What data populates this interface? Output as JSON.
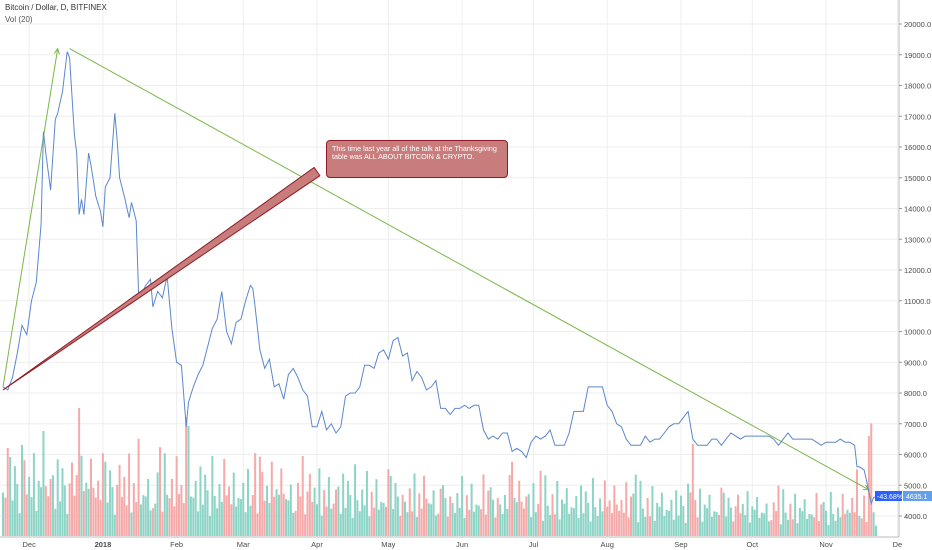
{
  "header": {
    "symbol": "Bitcoin / Dollar, D, BITFINEX",
    "volume_indicator": "Vol (20)"
  },
  "annotation": {
    "text": "This time last year all of the talk at the Thanksgiving table was ALL ABOUT BITCOIN & CRYPTO."
  },
  "badges": {
    "change": "-43.68%",
    "price": "4635.1"
  },
  "colors": {
    "price_line": "#5b87cf",
    "volume_up": "#7fcfc0",
    "volume_down": "#f4a0a0",
    "trend_line": "#7ab648",
    "arrow": "#8e1c24",
    "callout_bg": "#c97c7c",
    "grid": "#eeeeee",
    "badge_change": "#2962ff",
    "badge_price": "#62a0ea"
  },
  "chart_data": {
    "type": "line",
    "y_axis": {
      "position": "right",
      "ticks": [
        4000,
        5000,
        6000,
        7000,
        8000,
        9000,
        10000,
        11000,
        12000,
        13000,
        14000,
        15000,
        16000,
        17000,
        18000,
        19000,
        20000
      ],
      "tick_labels": [
        "4000.0",
        "5000.0",
        "6000.0",
        "7000.0",
        "8000.0",
        "9000.0",
        "10000.0",
        "11000.0",
        "12000.0",
        "13000.0",
        "14000.0",
        "15000.0",
        "16000.0",
        "17000.0",
        "18000.0",
        "19000.0",
        "20000.0"
      ],
      "range": [
        3650,
        20350
      ]
    },
    "x_axis": {
      "labels": [
        "Dec",
        "2018",
        "Feb",
        "Mar",
        "Apr",
        "May",
        "Jun",
        "Jul",
        "Aug",
        "Sep",
        "Oct",
        "Nov",
        "De"
      ],
      "bold_labels": [
        "2018"
      ]
    },
    "series": [
      {
        "kind": "price",
        "points": [
          [
            "2017-11-20",
            8200
          ],
          [
            "2017-11-22",
            8100
          ],
          [
            "2017-11-24",
            8500
          ],
          [
            "2017-11-26",
            9300
          ],
          [
            "2017-11-28",
            10200
          ],
          [
            "2017-11-30",
            9900
          ],
          [
            "2017-12-02",
            11000
          ],
          [
            "2017-12-04",
            11600
          ],
          [
            "2017-12-06",
            13500
          ],
          [
            "2017-12-07",
            16500
          ],
          [
            "2017-12-08",
            15800
          ],
          [
            "2017-12-10",
            14600
          ],
          [
            "2017-12-12",
            16900
          ],
          [
            "2017-12-13",
            17100
          ],
          [
            "2017-12-15",
            17800
          ],
          [
            "2017-12-17",
            19100
          ],
          [
            "2017-12-18",
            18900
          ],
          [
            "2017-12-20",
            16400
          ],
          [
            "2017-12-21",
            15800
          ],
          [
            "2017-12-22",
            13800
          ],
          [
            "2017-12-23",
            14300
          ],
          [
            "2017-12-24",
            13800
          ],
          [
            "2017-12-26",
            15800
          ],
          [
            "2017-12-27",
            15400
          ],
          [
            "2017-12-29",
            14400
          ],
          [
            "2017-12-31",
            13900
          ],
          [
            "2018-01-01",
            13400
          ],
          [
            "2018-01-02",
            14700
          ],
          [
            "2018-01-04",
            15000
          ],
          [
            "2018-01-06",
            17100
          ],
          [
            "2018-01-07",
            16200
          ],
          [
            "2018-01-08",
            15000
          ],
          [
            "2018-01-10",
            14400
          ],
          [
            "2018-01-12",
            13700
          ],
          [
            "2018-01-13",
            14200
          ],
          [
            "2018-01-15",
            13600
          ],
          [
            "2018-01-16",
            11200
          ],
          [
            "2018-01-17",
            11200
          ],
          [
            "2018-01-19",
            11500
          ],
          [
            "2018-01-21",
            11700
          ],
          [
            "2018-01-22",
            10800
          ],
          [
            "2018-01-24",
            11300
          ],
          [
            "2018-01-26",
            11100
          ],
          [
            "2018-01-28",
            11800
          ],
          [
            "2018-01-30",
            10100
          ],
          [
            "2018-02-01",
            9000
          ],
          [
            "2018-02-03",
            8900
          ],
          [
            "2018-02-05",
            6900
          ],
          [
            "2018-02-06",
            7700
          ],
          [
            "2018-02-08",
            8200
          ],
          [
            "2018-02-10",
            8600
          ],
          [
            "2018-02-12",
            8900
          ],
          [
            "2018-02-14",
            9500
          ],
          [
            "2018-02-16",
            10100
          ],
          [
            "2018-02-18",
            10400
          ],
          [
            "2018-02-20",
            11300
          ],
          [
            "2018-02-22",
            10000
          ],
          [
            "2018-02-24",
            9600
          ],
          [
            "2018-02-26",
            10300
          ],
          [
            "2018-02-28",
            10400
          ],
          [
            "2018-03-02",
            11000
          ],
          [
            "2018-03-04",
            11500
          ],
          [
            "2018-03-05",
            11400
          ],
          [
            "2018-03-06",
            10800
          ],
          [
            "2018-03-08",
            9400
          ],
          [
            "2018-03-10",
            8800
          ],
          [
            "2018-03-12",
            9100
          ],
          [
            "2018-03-14",
            8200
          ],
          [
            "2018-03-16",
            8300
          ],
          [
            "2018-03-18",
            7800
          ],
          [
            "2018-03-20",
            8600
          ],
          [
            "2018-03-22",
            8800
          ],
          [
            "2018-03-24",
            8500
          ],
          [
            "2018-03-26",
            8100
          ],
          [
            "2018-03-28",
            7900
          ],
          [
            "2018-03-30",
            6900
          ],
          [
            "2018-04-01",
            6900
          ],
          [
            "2018-04-03",
            7400
          ],
          [
            "2018-04-05",
            6800
          ],
          [
            "2018-04-07",
            7000
          ],
          [
            "2018-04-09",
            6700
          ],
          [
            "2018-04-11",
            6900
          ],
          [
            "2018-04-13",
            7900
          ],
          [
            "2018-04-15",
            8000
          ],
          [
            "2018-04-17",
            8000
          ],
          [
            "2018-04-19",
            8200
          ],
          [
            "2018-04-21",
            8900
          ],
          [
            "2018-04-23",
            8900
          ],
          [
            "2018-04-25",
            8800
          ],
          [
            "2018-04-27",
            9300
          ],
          [
            "2018-04-29",
            9400
          ],
          [
            "2018-05-01",
            9100
          ],
          [
            "2018-05-03",
            9700
          ],
          [
            "2018-05-05",
            9800
          ],
          [
            "2018-05-07",
            9200
          ],
          [
            "2018-05-09",
            9300
          ],
          [
            "2018-05-11",
            8400
          ],
          [
            "2018-05-13",
            8700
          ],
          [
            "2018-05-15",
            8500
          ],
          [
            "2018-05-17",
            8100
          ],
          [
            "2018-05-19",
            8200
          ],
          [
            "2018-05-21",
            8400
          ],
          [
            "2018-05-23",
            7500
          ],
          [
            "2018-05-25",
            7500
          ],
          [
            "2018-05-27",
            7300
          ],
          [
            "2018-05-29",
            7500
          ],
          [
            "2018-05-31",
            7500
          ],
          [
            "2018-06-02",
            7600
          ],
          [
            "2018-06-04",
            7500
          ],
          [
            "2018-06-06",
            7600
          ],
          [
            "2018-06-08",
            7600
          ],
          [
            "2018-06-10",
            6800
          ],
          [
            "2018-06-12",
            6500
          ],
          [
            "2018-06-14",
            6600
          ],
          [
            "2018-06-16",
            6500
          ],
          [
            "2018-06-18",
            6700
          ],
          [
            "2018-06-20",
            6700
          ],
          [
            "2018-06-22",
            6100
          ],
          [
            "2018-06-24",
            6200
          ],
          [
            "2018-06-26",
            6100
          ],
          [
            "2018-06-28",
            5900
          ],
          [
            "2018-06-30",
            6400
          ],
          [
            "2018-07-02",
            6600
          ],
          [
            "2018-07-04",
            6500
          ],
          [
            "2018-07-06",
            6600
          ],
          [
            "2018-07-08",
            6800
          ],
          [
            "2018-07-10",
            6300
          ],
          [
            "2018-07-12",
            6300
          ],
          [
            "2018-07-14",
            6300
          ],
          [
            "2018-07-16",
            6700
          ],
          [
            "2018-07-18",
            7400
          ],
          [
            "2018-07-20",
            7400
          ],
          [
            "2018-07-22",
            7400
          ],
          [
            "2018-07-24",
            8200
          ],
          [
            "2018-07-26",
            8200
          ],
          [
            "2018-07-28",
            8200
          ],
          [
            "2018-07-30",
            8200
          ],
          [
            "2018-08-01",
            7600
          ],
          [
            "2018-08-03",
            7400
          ],
          [
            "2018-08-05",
            7000
          ],
          [
            "2018-08-07",
            6900
          ],
          [
            "2018-08-09",
            6500
          ],
          [
            "2018-08-11",
            6300
          ],
          [
            "2018-08-13",
            6300
          ],
          [
            "2018-08-15",
            6300
          ],
          [
            "2018-08-17",
            6600
          ],
          [
            "2018-08-19",
            6400
          ],
          [
            "2018-08-21",
            6500
          ],
          [
            "2018-08-23",
            6500
          ],
          [
            "2018-08-25",
            6700
          ],
          [
            "2018-08-27",
            6900
          ],
          [
            "2018-08-29",
            7000
          ],
          [
            "2018-08-31",
            7000
          ],
          [
            "2018-09-02",
            7200
          ],
          [
            "2018-09-04",
            7400
          ],
          [
            "2018-09-06",
            6500
          ],
          [
            "2018-09-08",
            6300
          ],
          [
            "2018-09-10",
            6300
          ],
          [
            "2018-09-12",
            6300
          ],
          [
            "2018-09-14",
            6500
          ],
          [
            "2018-09-16",
            6500
          ],
          [
            "2018-09-18",
            6300
          ],
          [
            "2018-09-20",
            6500
          ],
          [
            "2018-09-22",
            6700
          ],
          [
            "2018-09-24",
            6600
          ],
          [
            "2018-09-26",
            6500
          ],
          [
            "2018-09-28",
            6600
          ],
          [
            "2018-09-30",
            6600
          ],
          [
            "2018-10-02",
            6600
          ],
          [
            "2018-10-04",
            6600
          ],
          [
            "2018-10-06",
            6600
          ],
          [
            "2018-10-08",
            6600
          ],
          [
            "2018-10-10",
            6500
          ],
          [
            "2018-10-12",
            6300
          ],
          [
            "2018-10-14",
            6500
          ],
          [
            "2018-10-16",
            6700
          ],
          [
            "2018-10-18",
            6500
          ],
          [
            "2018-10-20",
            6500
          ],
          [
            "2018-10-22",
            6500
          ],
          [
            "2018-10-24",
            6500
          ],
          [
            "2018-10-26",
            6500
          ],
          [
            "2018-10-28",
            6400
          ],
          [
            "2018-10-30",
            6300
          ],
          [
            "2018-11-01",
            6400
          ],
          [
            "2018-11-03",
            6400
          ],
          [
            "2018-11-05",
            6400
          ],
          [
            "2018-11-07",
            6500
          ],
          [
            "2018-11-09",
            6400
          ],
          [
            "2018-11-11",
            6400
          ],
          [
            "2018-11-13",
            6300
          ],
          [
            "2018-11-14",
            5600
          ],
          [
            "2018-11-15",
            5600
          ],
          [
            "2018-11-17",
            5500
          ],
          [
            "2018-11-19",
            4800
          ],
          [
            "2018-11-20",
            4400
          ],
          [
            "2018-11-21",
            4600
          ],
          [
            "2018-11-22",
            4635.1
          ]
        ]
      }
    ],
    "volume": {
      "pattern_up": [
        0.34,
        0.49,
        0.22,
        0.62,
        0.28,
        0.55,
        0.41,
        0.18,
        0.72,
        0.36,
        0.25,
        0.47,
        0.31,
        0.66,
        0.2,
        0.44,
        0.39,
        0.58,
        0.27,
        0.35
      ],
      "pattern_down": [
        0.46,
        0.3,
        0.69,
        0.24,
        0.51,
        0.38,
        0.77,
        0.21,
        0.43,
        0.6,
        0.33,
        0.5,
        0.26,
        0.7,
        0.37,
        0.45,
        0.29,
        0.64,
        0.4,
        0.32
      ],
      "spikes": [
        [
          "2017-12-22",
          1.0
        ],
        [
          "2017-12-07",
          0.82
        ],
        [
          "2018-02-05",
          0.93
        ],
        [
          "2018-02-06",
          0.86
        ],
        [
          "2018-01-16",
          0.76
        ],
        [
          "2018-03-08",
          0.62
        ],
        [
          "2018-11-20",
          0.88
        ],
        [
          "2018-11-19",
          0.78
        ],
        [
          "2018-09-06",
          0.72
        ],
        [
          "2018-11-14",
          0.52
        ],
        [
          "2018-06-22",
          0.58
        ],
        [
          "2018-08-13",
          0.48
        ]
      ]
    },
    "grid": true
  },
  "drawings": {
    "trend_lines": [
      {
        "from": [
          "2017-11-20",
          8200
        ],
        "to": [
          "2017-12-13",
          19200
        ]
      },
      {
        "from": [
          "2017-12-18",
          19200
        ],
        "to": [
          "2018-11-19",
          4850
        ]
      }
    ],
    "arrow": {
      "from": [
        "2017-11-20",
        8100
      ],
      "to": [
        "2018-04-01",
        15200
      ]
    }
  }
}
